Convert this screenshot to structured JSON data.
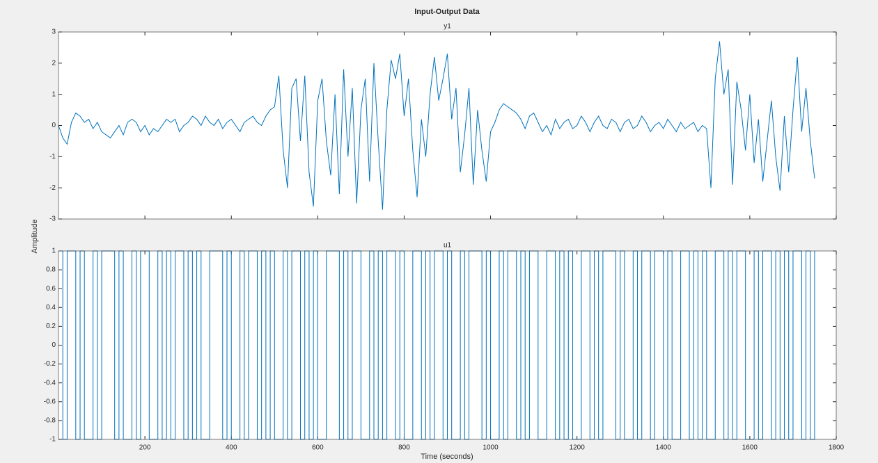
{
  "figure": {
    "title": "Input-Output Data",
    "xlabel": "Time (seconds)",
    "ylabel": "Amplitude"
  },
  "chart_data": [
    {
      "type": "line",
      "title": "y1",
      "color": "#0072bd",
      "x": [
        0,
        10,
        20,
        30,
        40,
        50,
        60,
        70,
        80,
        90,
        100,
        110,
        120,
        130,
        140,
        150,
        160,
        170,
        180,
        190,
        200,
        210,
        220,
        230,
        240,
        250,
        260,
        270,
        280,
        290,
        300,
        310,
        320,
        330,
        340,
        350,
        360,
        370,
        380,
        390,
        400,
        410,
        420,
        430,
        440,
        450,
        460,
        470,
        480,
        490,
        500,
        510,
        520,
        530,
        540,
        550,
        560,
        570,
        580,
        590,
        600,
        610,
        620,
        630,
        640,
        650,
        660,
        670,
        680,
        690,
        700,
        710,
        720,
        730,
        740,
        750,
        760,
        770,
        780,
        790,
        800,
        810,
        820,
        830,
        840,
        850,
        860,
        870,
        880,
        890,
        900,
        910,
        920,
        930,
        940,
        950,
        960,
        970,
        980,
        990,
        1000,
        1010,
        1020,
        1030,
        1040,
        1050,
        1060,
        1070,
        1080,
        1090,
        1100,
        1110,
        1120,
        1130,
        1140,
        1150,
        1160,
        1170,
        1180,
        1190,
        1200,
        1210,
        1220,
        1230,
        1240,
        1250,
        1260,
        1270,
        1280,
        1290,
        1300,
        1310,
        1320,
        1330,
        1340,
        1350,
        1360,
        1370,
        1380,
        1390,
        1400,
        1410,
        1420,
        1430,
        1440,
        1450,
        1460,
        1470,
        1480,
        1490,
        1500,
        1510,
        1520,
        1530,
        1540,
        1550,
        1560,
        1570,
        1580,
        1590,
        1600,
        1610,
        1620,
        1630,
        1640,
        1650,
        1660,
        1670,
        1680,
        1690,
        1700,
        1710,
        1720,
        1730,
        1740,
        1750
      ],
      "values": [
        0,
        -0.4,
        -0.6,
        0.1,
        0.4,
        0.3,
        0.1,
        0.2,
        -0.1,
        0.1,
        -0.2,
        -0.3,
        -0.4,
        -0.2,
        0.0,
        -0.3,
        0.1,
        0.2,
        0.1,
        -0.2,
        0.0,
        -0.3,
        -0.1,
        -0.2,
        0.0,
        0.2,
        0.1,
        0.2,
        -0.2,
        0.0,
        0.1,
        0.3,
        0.2,
        0.0,
        0.3,
        0.1,
        0.0,
        0.2,
        -0.1,
        0.1,
        0.2,
        0.0,
        -0.2,
        0.1,
        0.2,
        0.3,
        0.1,
        0.0,
        0.3,
        0.5,
        0.6,
        1.6,
        -0.8,
        -2.0,
        1.2,
        1.5,
        -0.5,
        1.6,
        -1.5,
        -2.6,
        0.8,
        1.5,
        -0.5,
        -1.6,
        1.0,
        -2.2,
        1.8,
        -1.0,
        1.2,
        -2.5,
        0.5,
        1.5,
        -1.8,
        2.0,
        -0.5,
        -2.7,
        0.5,
        2.1,
        1.5,
        2.3,
        0.3,
        1.5,
        -0.8,
        -2.3,
        0.2,
        -1.0,
        1.0,
        2.2,
        0.8,
        1.5,
        2.3,
        0.2,
        1.2,
        -1.5,
        -0.3,
        1.2,
        -1.9,
        0.5,
        -0.8,
        -1.8,
        -0.2,
        0.1,
        0.5,
        0.7,
        0.6,
        0.5,
        0.4,
        0.2,
        -0.1,
        0.3,
        0.4,
        0.1,
        -0.2,
        0.0,
        -0.3,
        0.2,
        -0.1,
        0.1,
        0.2,
        -0.1,
        0.0,
        0.3,
        0.1,
        -0.2,
        0.1,
        0.3,
        0.0,
        -0.1,
        0.2,
        0.1,
        -0.2,
        0.1,
        0.2,
        -0.1,
        0.0,
        0.3,
        0.1,
        -0.2,
        0.0,
        0.1,
        -0.1,
        0.2,
        0.0,
        -0.2,
        0.1,
        -0.1,
        0.0,
        0.1,
        -0.2,
        0.0,
        -0.1,
        -2.0,
        1.5,
        2.7,
        1.0,
        1.8,
        -1.9,
        1.4,
        0.5,
        -0.8,
        1.0,
        -1.2,
        0.2,
        -1.8,
        -0.5,
        0.8,
        -1.0,
        -2.1,
        0.3,
        -1.5,
        0.5,
        2.2,
        -0.2,
        1.2,
        -0.5,
        -1.7
      ],
      "xlim": [
        0,
        1800
      ],
      "ylim": [
        -3,
        3
      ],
      "yticks": [
        -3,
        -2,
        -1,
        0,
        1,
        2,
        3
      ]
    },
    {
      "type": "stairs",
      "title": "u1",
      "color": "#0072bd",
      "x": [
        0,
        10,
        20,
        30,
        40,
        50,
        60,
        70,
        80,
        90,
        100,
        110,
        120,
        130,
        140,
        150,
        160,
        170,
        180,
        190,
        200,
        210,
        220,
        230,
        240,
        250,
        260,
        270,
        280,
        290,
        300,
        310,
        320,
        330,
        340,
        350,
        360,
        370,
        380,
        390,
        400,
        410,
        420,
        430,
        440,
        450,
        460,
        470,
        480,
        490,
        500,
        510,
        520,
        530,
        540,
        550,
        560,
        570,
        580,
        590,
        600,
        610,
        620,
        630,
        640,
        650,
        660,
        670,
        680,
        690,
        700,
        710,
        720,
        730,
        740,
        750,
        760,
        770,
        780,
        790,
        800,
        810,
        820,
        830,
        840,
        850,
        860,
        870,
        880,
        890,
        900,
        910,
        920,
        930,
        940,
        950,
        960,
        970,
        980,
        990,
        1000,
        1010,
        1020,
        1030,
        1040,
        1050,
        1060,
        1070,
        1080,
        1090,
        1100,
        1110,
        1120,
        1130,
        1140,
        1150,
        1160,
        1170,
        1180,
        1190,
        1200,
        1210,
        1220,
        1230,
        1240,
        1250,
        1260,
        1270,
        1280,
        1290,
        1300,
        1310,
        1320,
        1330,
        1340,
        1350,
        1360,
        1370,
        1380,
        1390,
        1400,
        1410,
        1420,
        1430,
        1440,
        1450,
        1460,
        1470,
        1480,
        1490,
        1500,
        1510,
        1520,
        1530,
        1540,
        1550,
        1560,
        1570,
        1580,
        1590,
        1600,
        1610,
        1620,
        1630,
        1640,
        1650,
        1660,
        1670,
        1680,
        1690,
        1700,
        1710,
        1720,
        1730,
        1740,
        1750
      ],
      "values": [
        1,
        -1,
        1,
        1,
        -1,
        1,
        -1,
        -1,
        1,
        -1,
        1,
        1,
        1,
        -1,
        1,
        -1,
        -1,
        1,
        -1,
        1,
        1,
        -1,
        -1,
        1,
        -1,
        1,
        -1,
        1,
        1,
        -1,
        1,
        -1,
        1,
        -1,
        -1,
        1,
        1,
        1,
        -1,
        1,
        -1,
        -1,
        1,
        -1,
        1,
        1,
        -1,
        1,
        -1,
        1,
        -1,
        -1,
        1,
        -1,
        1,
        1,
        -1,
        1,
        -1,
        1,
        -1,
        -1,
        1,
        1,
        1,
        -1,
        1,
        -1,
        1,
        1,
        -1,
        -1,
        1,
        -1,
        1,
        -1,
        1,
        1,
        -1,
        1,
        -1,
        -1,
        1,
        1,
        -1,
        1,
        -1,
        1,
        1,
        -1,
        1,
        -1,
        -1,
        1,
        -1,
        1,
        1,
        1,
        -1,
        1,
        -1,
        -1,
        1,
        -1,
        1,
        1,
        -1,
        1,
        -1,
        1,
        1,
        -1,
        -1,
        1,
        1,
        -1,
        1,
        -1,
        1,
        -1,
        -1,
        1,
        1,
        -1,
        1,
        -1,
        1,
        1,
        1,
        -1,
        1,
        -1,
        -1,
        1,
        -1,
        1,
        1,
        -1,
        1,
        1,
        -1,
        1,
        -1,
        -1,
        1,
        1,
        -1,
        1,
        -1,
        1,
        -1,
        -1,
        1,
        1,
        -1,
        1,
        -1,
        1,
        1,
        -1,
        -1,
        1,
        -1,
        1,
        1,
        -1,
        1,
        -1,
        1,
        -1,
        1,
        1,
        -1,
        1,
        -1,
        1
      ],
      "xlim": [
        0,
        1800
      ],
      "xticks": [
        200,
        400,
        600,
        800,
        1000,
        1200,
        1400,
        1600,
        1800
      ],
      "ylim": [
        -1,
        1
      ],
      "yticks": [
        -1,
        -0.8,
        -0.6,
        -0.4,
        -0.2,
        0,
        0.2,
        0.4,
        0.6,
        0.8,
        1
      ]
    }
  ]
}
